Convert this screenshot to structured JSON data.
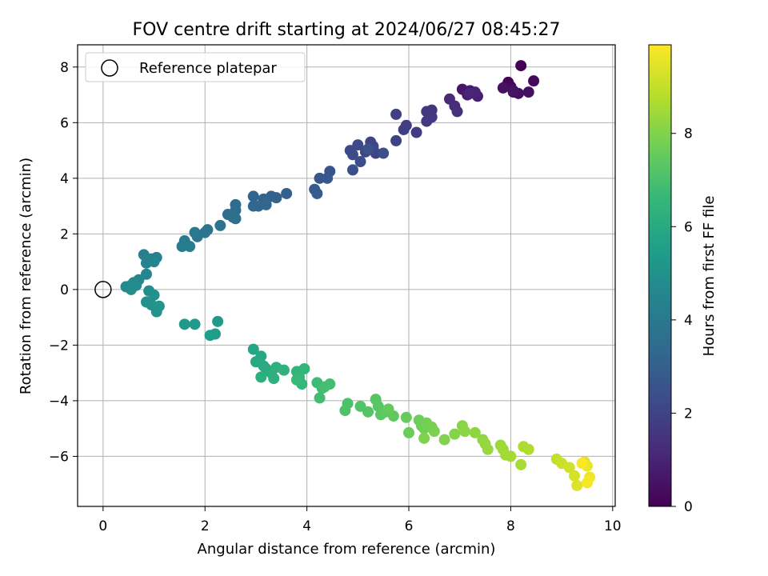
{
  "chart_data": {
    "type": "scatter",
    "title": "FOV centre drift starting at 2024/06/27 08:45:27",
    "xlabel": "Angular distance from reference (arcmin)",
    "ylabel": "Rotation from reference (arcmin)",
    "xlim": [
      -0.5,
      10.05
    ],
    "ylim": [
      -7.8,
      8.8
    ],
    "xticks": [
      0,
      2,
      4,
      6,
      8,
      10
    ],
    "yticks": [
      -6,
      -4,
      -2,
      0,
      2,
      4,
      6,
      8
    ],
    "xtick_labels": [
      "0",
      "2",
      "4",
      "6",
      "8",
      "10"
    ],
    "ytick_labels": [
      "−6",
      "−4",
      "−2",
      "0",
      "2",
      "4",
      "6",
      "8"
    ],
    "grid": true,
    "legend": {
      "placement": "top-left",
      "label": "Reference platepar"
    },
    "reference_point": {
      "x": 0,
      "y": 0
    },
    "colorbar": {
      "label": "Hours from first FF file",
      "colormap": "viridis",
      "range": [
        0,
        9.9
      ],
      "ticks": [
        0,
        2,
        4,
        6,
        8
      ],
      "tick_labels": [
        "0",
        "2",
        "4",
        "6",
        "8"
      ]
    },
    "colormap_stops": [
      "#440154",
      "#482878",
      "#3e4989",
      "#31688e",
      "#26828e",
      "#1f9e89",
      "#35b779",
      "#6ece58",
      "#b5de2b",
      "#fde725"
    ],
    "points": [
      [
        8.2,
        8.05,
        0.05
      ],
      [
        7.95,
        7.45,
        0.1
      ],
      [
        7.9,
        7.3,
        0.15
      ],
      [
        8.45,
        7.5,
        0.2
      ],
      [
        8.0,
        7.3,
        0.25
      ],
      [
        8.05,
        7.1,
        0.3
      ],
      [
        8.15,
        7.05,
        0.35
      ],
      [
        8.35,
        7.1,
        0.4
      ],
      [
        7.85,
        7.25,
        0.45
      ],
      [
        8.05,
        7.15,
        0.5
      ],
      [
        7.05,
        7.2,
        0.6
      ],
      [
        7.2,
        7.15,
        0.7
      ],
      [
        7.15,
        7.0,
        0.8
      ],
      [
        7.35,
        6.95,
        0.9
      ],
      [
        7.3,
        7.1,
        1.0
      ],
      [
        7.2,
        7.05,
        1.05
      ],
      [
        6.8,
        6.85,
        1.15
      ],
      [
        6.9,
        6.6,
        1.25
      ],
      [
        6.95,
        6.4,
        1.35
      ],
      [
        6.45,
        6.45,
        1.5
      ],
      [
        6.35,
        6.4,
        1.55
      ],
      [
        6.45,
        6.2,
        1.6
      ],
      [
        6.35,
        6.05,
        1.65
      ],
      [
        6.15,
        5.65,
        1.75
      ],
      [
        5.95,
        5.9,
        1.8
      ],
      [
        5.9,
        5.75,
        1.85
      ],
      [
        5.75,
        6.3,
        1.9
      ],
      [
        5.75,
        5.35,
        1.95
      ],
      [
        5.35,
        4.9,
        2.0
      ],
      [
        5.25,
        5.3,
        2.05
      ],
      [
        5.15,
        4.95,
        2.1
      ],
      [
        5.3,
        5.15,
        2.15
      ],
      [
        5.0,
        5.2,
        2.2
      ],
      [
        4.85,
        5.0,
        2.25
      ],
      [
        4.9,
        4.85,
        2.3
      ],
      [
        5.05,
        4.6,
        2.35
      ],
      [
        4.9,
        4.3,
        2.4
      ],
      [
        5.5,
        4.9,
        2.45
      ],
      [
        5.2,
        5.05,
        2.5
      ],
      [
        4.45,
        4.25,
        2.6
      ],
      [
        4.25,
        4.0,
        2.65
      ],
      [
        4.4,
        4.0,
        2.7
      ],
      [
        4.15,
        3.6,
        2.8
      ],
      [
        4.2,
        3.45,
        2.85
      ],
      [
        3.6,
        3.45,
        3.0
      ],
      [
        3.3,
        3.35,
        3.05
      ],
      [
        3.4,
        3.3,
        3.1
      ],
      [
        3.15,
        3.25,
        3.15
      ],
      [
        2.95,
        3.35,
        3.2
      ],
      [
        3.2,
        3.05,
        3.25
      ],
      [
        3.05,
        3.0,
        3.3
      ],
      [
        2.95,
        3.0,
        3.35
      ],
      [
        2.6,
        3.05,
        3.45
      ],
      [
        2.6,
        2.85,
        3.5
      ],
      [
        2.45,
        2.7,
        3.55
      ],
      [
        2.55,
        2.6,
        3.6
      ],
      [
        2.6,
        2.55,
        3.65
      ],
      [
        2.3,
        2.3,
        3.75
      ],
      [
        2.05,
        2.15,
        3.8
      ],
      [
        2.0,
        2.05,
        3.85
      ],
      [
        1.85,
        1.9,
        3.9
      ],
      [
        1.8,
        2.05,
        3.95
      ],
      [
        1.6,
        1.75,
        4.05
      ],
      [
        1.7,
        1.55,
        4.1
      ],
      [
        1.55,
        1.55,
        4.15
      ],
      [
        0.8,
        1.25,
        4.3
      ],
      [
        1.05,
        1.15,
        4.35
      ],
      [
        0.85,
        0.95,
        4.4
      ],
      [
        0.95,
        1.1,
        4.45
      ],
      [
        1.0,
        1.0,
        4.5
      ],
      [
        0.85,
        0.55,
        4.55
      ],
      [
        0.7,
        0.35,
        4.6
      ],
      [
        0.6,
        0.25,
        4.65
      ],
      [
        0.55,
        0.15,
        4.7
      ],
      [
        0.45,
        0.1,
        4.75
      ],
      [
        0.65,
        0.15,
        4.8
      ],
      [
        0.55,
        0.0,
        4.85
      ],
      [
        0.9,
        -0.05,
        4.9
      ],
      [
        1.0,
        -0.2,
        4.95
      ],
      [
        0.85,
        -0.45,
        5.0
      ],
      [
        0.95,
        -0.55,
        5.05
      ],
      [
        1.05,
        -0.8,
        5.1
      ],
      [
        1.1,
        -0.6,
        5.15
      ],
      [
        1.6,
        -1.25,
        5.3
      ],
      [
        1.8,
        -1.25,
        5.35
      ],
      [
        2.25,
        -1.15,
        5.4
      ],
      [
        2.2,
        -1.6,
        5.45
      ],
      [
        2.1,
        -1.65,
        5.5
      ],
      [
        2.95,
        -2.15,
        5.8
      ],
      [
        3.1,
        -2.4,
        5.9
      ],
      [
        3.0,
        -2.6,
        6.0
      ],
      [
        3.15,
        -2.75,
        6.05
      ],
      [
        3.2,
        -2.85,
        6.1
      ],
      [
        3.3,
        -3.0,
        6.15
      ],
      [
        3.1,
        -3.15,
        6.2
      ],
      [
        3.35,
        -3.2,
        6.25
      ],
      [
        3.4,
        -2.8,
        6.3
      ],
      [
        3.55,
        -2.9,
        6.35
      ],
      [
        3.8,
        -2.95,
        6.45
      ],
      [
        3.95,
        -2.85,
        6.5
      ],
      [
        3.85,
        -3.15,
        6.55
      ],
      [
        3.9,
        -3.4,
        6.6
      ],
      [
        3.8,
        -3.25,
        6.65
      ],
      [
        4.2,
        -3.35,
        6.75
      ],
      [
        4.3,
        -3.55,
        6.8
      ],
      [
        4.25,
        -3.9,
        6.85
      ],
      [
        4.45,
        -3.4,
        6.9
      ],
      [
        4.35,
        -3.5,
        6.95
      ],
      [
        4.8,
        -4.1,
        7.05
      ],
      [
        4.75,
        -4.35,
        7.1
      ],
      [
        5.05,
        -4.2,
        7.15
      ],
      [
        5.2,
        -4.4,
        7.2
      ],
      [
        5.35,
        -3.95,
        7.25
      ],
      [
        5.4,
        -4.2,
        7.3
      ],
      [
        5.45,
        -4.5,
        7.35
      ],
      [
        5.55,
        -4.4,
        7.4
      ],
      [
        5.7,
        -4.55,
        7.45
      ],
      [
        5.6,
        -4.3,
        7.5
      ],
      [
        5.95,
        -4.6,
        7.55
      ],
      [
        6.0,
        -5.15,
        7.6
      ],
      [
        6.2,
        -4.7,
        7.65
      ],
      [
        6.25,
        -4.9,
        7.7
      ],
      [
        6.3,
        -5.0,
        7.75
      ],
      [
        6.35,
        -4.8,
        7.8
      ],
      [
        6.45,
        -4.95,
        7.85
      ],
      [
        6.5,
        -5.1,
        7.9
      ],
      [
        6.3,
        -5.35,
        7.95
      ],
      [
        6.7,
        -5.4,
        8.0
      ],
      [
        6.9,
        -5.2,
        8.05
      ],
      [
        7.05,
        -4.9,
        8.1
      ],
      [
        7.1,
        -5.1,
        8.15
      ],
      [
        7.3,
        -5.15,
        8.2
      ],
      [
        7.45,
        -5.4,
        8.25
      ],
      [
        7.5,
        -5.55,
        8.3
      ],
      [
        7.55,
        -5.75,
        8.35
      ],
      [
        7.8,
        -5.6,
        8.4
      ],
      [
        7.85,
        -5.75,
        8.45
      ],
      [
        7.9,
        -5.95,
        8.5
      ],
      [
        8.0,
        -6.0,
        8.55
      ],
      [
        8.2,
        -6.3,
        8.6
      ],
      [
        8.25,
        -5.65,
        8.65
      ],
      [
        8.35,
        -5.75,
        8.7
      ],
      [
        8.9,
        -6.1,
        9.0
      ],
      [
        9.0,
        -6.25,
        9.1
      ],
      [
        9.15,
        -6.4,
        9.2
      ],
      [
        9.25,
        -6.7,
        9.3
      ],
      [
        9.3,
        -7.05,
        9.4
      ],
      [
        9.45,
        -6.2,
        9.5
      ],
      [
        9.5,
        -6.35,
        9.6
      ],
      [
        9.55,
        -6.75,
        9.7
      ],
      [
        9.5,
        -6.95,
        9.8
      ],
      [
        9.4,
        -6.25,
        9.85
      ]
    ]
  }
}
